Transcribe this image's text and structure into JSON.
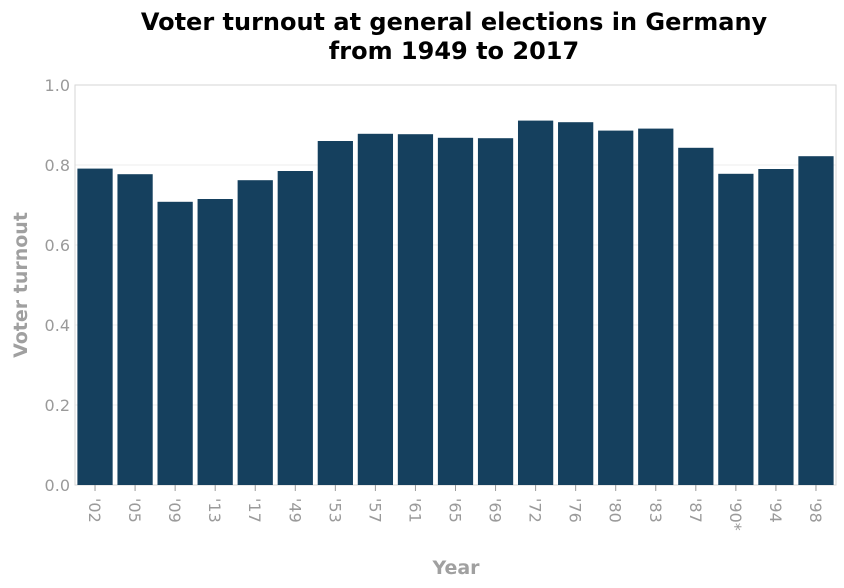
{
  "chart_data": {
    "type": "bar",
    "title_lines": [
      "Voter turnout at general elections in Germany",
      "from 1949 to 2017"
    ],
    "xlabel": "Year",
    "ylabel": "Voter turnout",
    "categories": [
      "'02",
      "'05",
      "'09",
      "'13",
      "'17",
      "'49",
      "'53",
      "'57",
      "'61",
      "'65",
      "'69",
      "'72",
      "'76",
      "'80",
      "'83",
      "'87",
      "'90*",
      "'94",
      "'98"
    ],
    "values": [
      0.791,
      0.777,
      0.708,
      0.715,
      0.762,
      0.785,
      0.86,
      0.878,
      0.877,
      0.868,
      0.867,
      0.911,
      0.907,
      0.886,
      0.891,
      0.843,
      0.778,
      0.79,
      0.822
    ],
    "ylim": [
      0,
      1.0
    ],
    "yticks": [
      "0.0",
      "0.2",
      "0.4",
      "0.6",
      "0.8",
      "1.0"
    ],
    "grid": true,
    "bar_color": "#15405e"
  }
}
